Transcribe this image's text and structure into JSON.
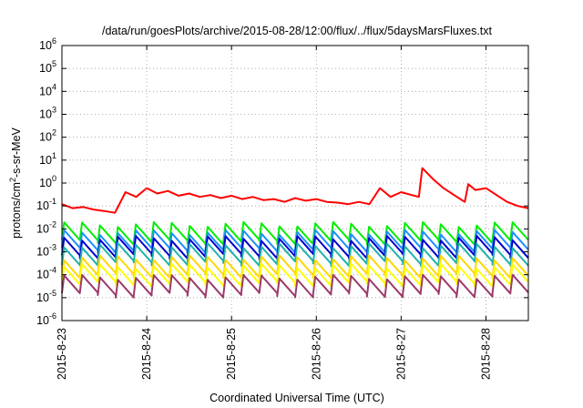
{
  "chart_data": {
    "type": "line",
    "title": "/data/run/goesPlots/archive/2015-08-28/12:00/flux/../flux/5daysMarsFluxes.txt",
    "xlabel": "Coordinated Universal Time (UTC)",
    "ylabel_parts": [
      "protons/cm",
      "2",
      "-s-sr-MeV"
    ],
    "y_scale": "log",
    "ylim": [
      1e-06,
      1000000.0
    ],
    "y_tick_exponents": [
      -6,
      -5,
      -4,
      -3,
      -2,
      -1,
      0,
      1,
      2,
      3,
      4,
      5,
      6
    ],
    "xlim": [
      "2015-08-23 00:00",
      "2015-08-28 12:00"
    ],
    "x_ticks": [
      "2015-8-23",
      "2015-8-24",
      "2015-8-25",
      "2015-8-26",
      "2015-8-27",
      "2015-8-28"
    ],
    "grid": true,
    "series": [
      {
        "color": "#ff0000",
        "x": [
          "2015-08-23 00:00",
          "2015-08-23 03:00",
          "2015-08-23 06:00",
          "2015-08-23 09:00",
          "2015-08-23 12:00",
          "2015-08-23 15:00",
          "2015-08-23 18:00",
          "2015-08-23 21:00",
          "2015-08-24 00:00",
          "2015-08-24 03:00",
          "2015-08-24 06:00",
          "2015-08-24 09:00",
          "2015-08-24 12:00",
          "2015-08-24 15:00",
          "2015-08-24 18:00",
          "2015-08-24 21:00",
          "2015-08-25 00:00",
          "2015-08-25 03:00",
          "2015-08-25 06:00",
          "2015-08-25 09:00",
          "2015-08-25 12:00",
          "2015-08-25 15:00",
          "2015-08-25 18:00",
          "2015-08-25 21:00",
          "2015-08-26 00:00",
          "2015-08-26 03:00",
          "2015-08-26 06:00",
          "2015-08-26 09:00",
          "2015-08-26 12:00",
          "2015-08-26 15:00",
          "2015-08-26 18:00",
          "2015-08-26 21:00",
          "2015-08-27 00:00",
          "2015-08-27 03:00",
          "2015-08-27 05:00",
          "2015-08-27 06:00",
          "2015-08-27 09:00",
          "2015-08-27 12:00",
          "2015-08-27 15:00",
          "2015-08-27 18:00",
          "2015-08-27 19:00",
          "2015-08-27 21:00",
          "2015-08-28 00:00",
          "2015-08-28 03:00",
          "2015-08-28 06:00",
          "2015-08-28 09:00",
          "2015-08-28 12:00"
        ],
        "values": [
          0.12,
          0.08,
          0.09,
          0.07,
          0.06,
          0.05,
          0.4,
          0.25,
          0.6,
          0.35,
          0.45,
          0.28,
          0.35,
          0.25,
          0.3,
          0.22,
          0.28,
          0.2,
          0.25,
          0.18,
          0.2,
          0.15,
          0.22,
          0.17,
          0.2,
          0.15,
          0.14,
          0.12,
          0.15,
          0.12,
          0.6,
          0.25,
          0.4,
          0.3,
          0.25,
          4.5,
          1.5,
          0.6,
          0.3,
          0.15,
          0.9,
          0.5,
          0.6,
          0.3,
          0.15,
          0.1,
          0.08
        ]
      },
      {
        "color": "#00ee00",
        "base": 0.01,
        "spread": 1.0,
        "teeth": 26,
        "drop": 0.45
      },
      {
        "color": "#1e90ff",
        "base": 0.0045,
        "spread": 1.0,
        "teeth": 26,
        "drop": 0.45
      },
      {
        "color": "#0000cd",
        "base": 0.0025,
        "spread": 1.0,
        "teeth": 26,
        "drop": 0.45
      },
      {
        "color": "#20b2aa",
        "base": 0.0012,
        "spread": 1.0,
        "teeth": 26,
        "drop": 0.45
      },
      {
        "color": "#ffd700",
        "base": 0.00035,
        "spread": 1.0,
        "teeth": 26,
        "drop": 0.45
      },
      {
        "color": "#ffff00",
        "base": 0.00015,
        "spread": 1.0,
        "teeth": 26,
        "drop": 0.45
      },
      {
        "color": "#9b3a6b",
        "base": 5e-05,
        "spread": 1.0,
        "teeth": 26,
        "drop": 0.45
      }
    ]
  }
}
